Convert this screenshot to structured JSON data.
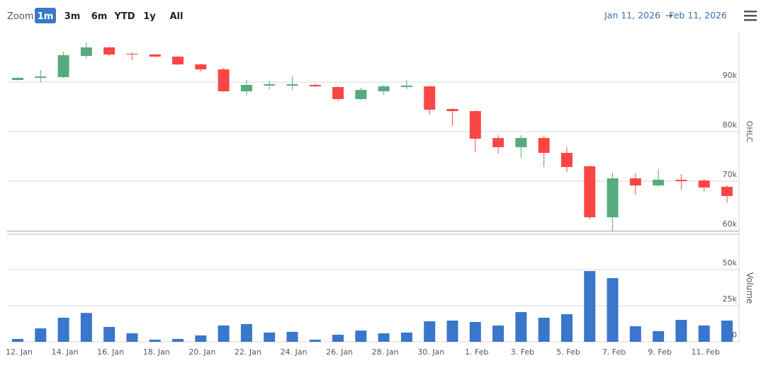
{
  "range_selector": {
    "label": "Zoom",
    "buttons": [
      "1m",
      "3m",
      "6m",
      "YTD",
      "1y",
      "All"
    ],
    "selected": 0
  },
  "date_range": {
    "from": "Jan 11, 2026",
    "separator": "→",
    "to": "Feb 11, 2026"
  },
  "chart_data": {
    "type": "candlestick",
    "categories": [
      "12. Jan",
      null,
      "14. Jan",
      null,
      "16. Jan",
      null,
      "18. Jan",
      null,
      "20. Jan",
      null,
      "22. Jan",
      null,
      "24. Jan",
      null,
      "26. Jan",
      null,
      "28. Jan",
      null,
      "30. Jan",
      null,
      "1. Feb",
      null,
      "3. Feb",
      null,
      "5. Feb",
      null,
      "7. Feb",
      null,
      "9. Feb",
      null,
      "11. Feb",
      null
    ],
    "series": [
      {
        "name": "OHLC",
        "type": "candlestick",
        "up_color": "#55ab7e",
        "down_color": "#fb4646",
        "open": [
          90430,
          90860,
          91000,
          95290,
          97000,
          95710,
          95570,
          95140,
          93570,
          92570,
          88140,
          89290,
          89290,
          89430,
          89000,
          86570,
          88140,
          89000,
          89140,
          84570,
          84140,
          78710,
          76860,
          78710,
          75710,
          73000,
          62710,
          70570,
          69140,
          70290,
          70140,
          68860
        ],
        "high": [
          91000,
          92430,
          96140,
          98000,
          97140,
          96000,
          95710,
          95290,
          93710,
          92860,
          90430,
          90290,
          91140,
          89710,
          89140,
          88860,
          89430,
          90430,
          89290,
          84710,
          84290,
          79290,
          79290,
          79000,
          76860,
          73140,
          71710,
          71570,
          72430,
          71430,
          70430,
          69140
        ],
        "low": [
          90290,
          90000,
          90860,
          94710,
          95290,
          94430,
          95000,
          93430,
          92140,
          88000,
          87290,
          88570,
          88430,
          89000,
          86140,
          86430,
          87430,
          88570,
          83430,
          81140,
          75860,
          75570,
          74710,
          72860,
          71860,
          62290,
          60000,
          67290,
          68860,
          68290,
          68000,
          65710
        ],
        "close": [
          90860,
          91140,
          95430,
          97000,
          95570,
          95570,
          95140,
          93570,
          92570,
          88140,
          89430,
          89570,
          89570,
          89140,
          86570,
          88430,
          89140,
          89290,
          84430,
          84140,
          78570,
          76860,
          78710,
          75710,
          72860,
          62710,
          70570,
          69140,
          70290,
          70000,
          68710,
          67000
        ]
      },
      {
        "name": "Volume",
        "type": "bar",
        "axis": "y2",
        "color": "#3a76c9",
        "values": [
          2000,
          9300,
          16700,
          20000,
          10300,
          5900,
          1500,
          2000,
          4400,
          11300,
          12300,
          6400,
          6900,
          1500,
          4900,
          7800,
          5900,
          6400,
          14200,
          14700,
          13700,
          11300,
          20600,
          16700,
          19100,
          49000,
          44100,
          10800,
          7400,
          15200,
          11300,
          14700
        ]
      }
    ],
    "ylim": [
      60000,
      100000
    ],
    "yticks": [
      {
        "value": 60000,
        "label": "60k"
      },
      {
        "value": 70000,
        "label": "70k"
      },
      {
        "value": 80000,
        "label": "80k"
      },
      {
        "value": 90000,
        "label": "90k"
      }
    ],
    "y2lim": [
      0,
      74500
    ],
    "y2ticks": [
      0,
      {
        "value": 25000,
        "label": "25k"
      },
      {
        "value": 50000,
        "label": "50k"
      }
    ],
    "grid": true
  }
}
